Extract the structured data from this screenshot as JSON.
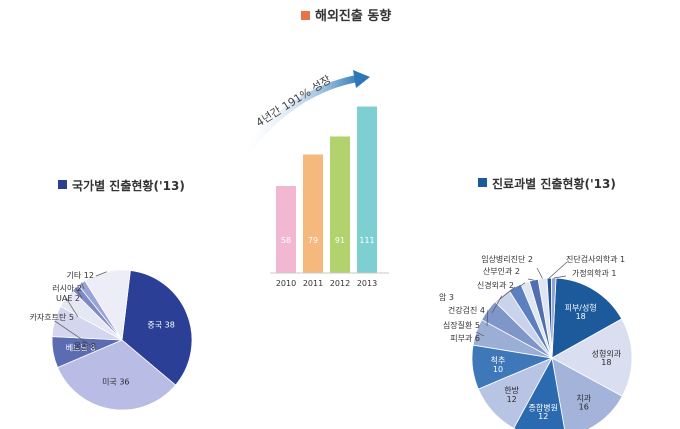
{
  "title": "해외진출 동향",
  "colors": {
    "title_marker": "#e8734a",
    "section_marker": "#2a3f8f",
    "section_marker2": "#1c5a9a",
    "arrow": "#2e77b7"
  },
  "chart_data": [
    {
      "type": "bar",
      "title": "",
      "annotation": "4년간 191% 성장",
      "categories": [
        "2010",
        "2011",
        "2012",
        "2013"
      ],
      "values": [
        58,
        79,
        91,
        111
      ],
      "value_labels": [
        "58",
        "79",
        "91",
        "111"
      ],
      "colors": [
        "#f2b8d3",
        "#f5b97d",
        "#b2d26e",
        "#7dcfd2"
      ],
      "ylim": [
        0,
        120
      ]
    },
    {
      "type": "pie",
      "title": "국가별 진출현황('13)",
      "slices": [
        {
          "label": "중국",
          "value": 38,
          "text": "중국 38",
          "color": "#2b3f97",
          "inside": true
        },
        {
          "label": "미국",
          "value": 36,
          "text": "미국 36",
          "color": "#b9bde6",
          "inside": true
        },
        {
          "label": "베트남",
          "value": 8,
          "text": "베트남 8",
          "color": "#5b6cb2",
          "inside": true
        },
        {
          "label": "몽골",
          "value": 8,
          "text": "몽골 8",
          "color": "#d3d6ee",
          "inside": false
        },
        {
          "label": "카자흐스탄",
          "value": 5,
          "text": "카자흐트탄 5",
          "color": "#e6e7f5",
          "inside": false
        },
        {
          "label": "UAE",
          "value": 2,
          "text": "UAE 2",
          "color": "#7e89c6",
          "inside": false
        },
        {
          "label": "러시아",
          "value": 2,
          "text": "러시아 2",
          "color": "#9aa3d6",
          "inside": false
        },
        {
          "label": "기타",
          "value": 12,
          "text": "기타 12",
          "color": "#ecedf7",
          "inside": false
        }
      ]
    },
    {
      "type": "pie",
      "title": "진료과별 진출현황('13)",
      "slices": [
        {
          "label": "피부/성형",
          "value": 18,
          "text": "피부/성형\n18",
          "color": "#1d5a9c",
          "inside": true
        },
        {
          "label": "성형외과",
          "value": 18,
          "text": "성형외과\n18",
          "color": "#d9dff0",
          "inside": true
        },
        {
          "label": "치과",
          "value": 16,
          "text": "치과\n16",
          "color": "#a4b3da",
          "inside": true
        },
        {
          "label": "종합병원",
          "value": 12,
          "text": "종합병원\n12",
          "color": "#2c6ab0",
          "inside": true
        },
        {
          "label": "한방",
          "value": 12,
          "text": "한방\n12",
          "color": "#b8c4e3",
          "inside": true
        },
        {
          "label": "척추",
          "value": 10,
          "text": "척추\n10",
          "color": "#3f78b9",
          "inside": true
        },
        {
          "label": "피부과",
          "value": 6,
          "text": "피부과 6",
          "color": "#9aaed6",
          "inside": false
        },
        {
          "label": "심장질환",
          "value": 5,
          "text": "심장질환 5",
          "color": "#7f96c9",
          "inside": false
        },
        {
          "label": "건강검진",
          "value": 4,
          "text": "건강검진 4",
          "color": "#c9d3ec",
          "inside": false
        },
        {
          "label": "암",
          "value": 3,
          "text": "암 3",
          "color": "#5b7fbf",
          "inside": false
        },
        {
          "label": "신경외과",
          "value": 2,
          "text": "신경외과 2",
          "color": "#e1e6f4",
          "inside": false
        },
        {
          "label": "산부인과",
          "value": 2,
          "text": "산부인과 2",
          "color": "#4f6fb2",
          "inside": false
        },
        {
          "label": "임상병리진단",
          "value": 2,
          "text": "임상병리진단 2",
          "color": "#dfe5f3",
          "inside": false
        },
        {
          "label": "진단검사의학과",
          "value": 1,
          "text": "진단검사의학과 1",
          "color": "#254f94",
          "inside": false
        },
        {
          "label": "가정의학과",
          "value": 1,
          "text": "가정의학과 1",
          "color": "#8ea3d1",
          "inside": false
        }
      ]
    }
  ]
}
